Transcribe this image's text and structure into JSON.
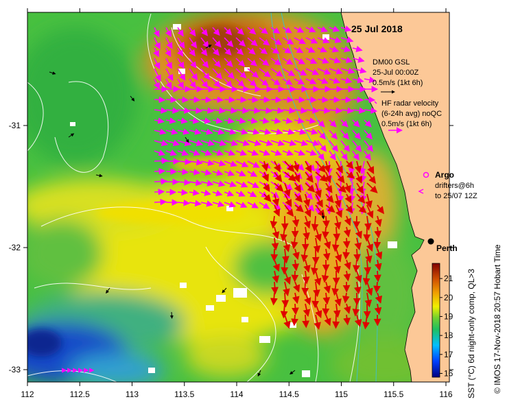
{
  "map": {
    "date": "25 Jul 2018",
    "city": "Perth",
    "lon_range": [
      112,
      116
    ],
    "lat_range": [
      -33.1,
      -30.1
    ]
  },
  "axes": {
    "x_ticks": [
      "112",
      "112.5",
      "113",
      "113.5",
      "114",
      "114.5",
      "115",
      "115.5",
      "116"
    ],
    "y_ticks": [
      "-31",
      "-32",
      "-33"
    ]
  },
  "legend": {
    "glider": {
      "line1": "DM00 GSL",
      "line2": "25-Jul 00:00Z",
      "line3": "0.5m/s (1kt 6h)"
    },
    "radar": {
      "line1": "HF radar velocity",
      "line2": "(6-24h avg) noQC",
      "line3": "0.5m/s (1kt 6h)"
    },
    "argo": "Argo",
    "drifters": {
      "line1": "drifters@6h",
      "line2": "to 25/07 12Z"
    }
  },
  "colorbar": {
    "title": "SST (°C) 6d night-only comp, QL>3",
    "ticks": [
      "16",
      "17",
      "18",
      "19",
      "20",
      "21"
    ],
    "range": [
      15.8,
      21.8
    ],
    "colors": [
      "#000080",
      "#0040ff",
      "#00c0ff",
      "#20c060",
      "#70d030",
      "#f0f000",
      "#f0a000",
      "#d05000",
      "#800000"
    ]
  },
  "credit": "© IMOS 17-Nov-2018 20:57 Hobart Time",
  "land_color": "#fcc897"
}
